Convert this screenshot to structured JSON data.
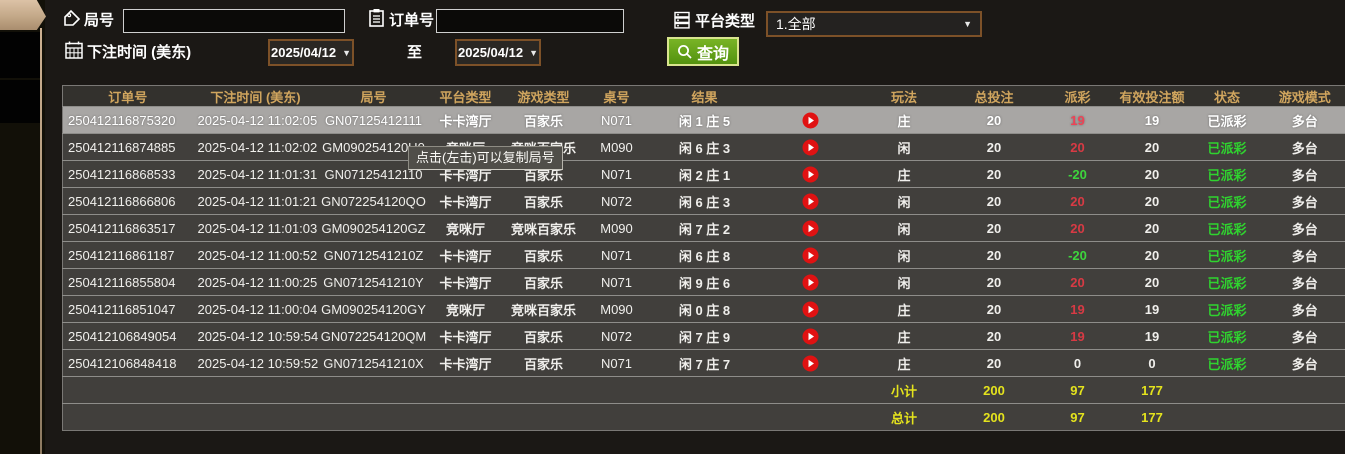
{
  "colors": {
    "accent_gold": "#d0a55e",
    "row_bg": "#413f3c",
    "selected_row_bg": "#a8a6a4",
    "payout_red": "#d83a44",
    "payout_green": "#3dd53d",
    "status_green": "#2fd32f",
    "sum_yellow": "#e4e31d",
    "button_green": "#63a31a",
    "border_brown": "#7d5128"
  },
  "filters": {
    "round": {
      "label": "局号",
      "value": "",
      "icon": "tag-icon"
    },
    "order": {
      "label": "订单号",
      "value": "",
      "icon": "clipboard-icon"
    },
    "platform": {
      "label": "平台类型",
      "value": "1.全部",
      "icon": "server-icon"
    },
    "bet_time": {
      "label": "下注时间 (美东)",
      "icon": "calendar-icon"
    },
    "date_from": "2025/04/12",
    "to_label": "至",
    "date_to": "2025/04/12",
    "search": {
      "label": "查询",
      "icon": "magnifier-icon"
    }
  },
  "tooltip": {
    "text": "点击(左击)可以复制局号"
  },
  "table": {
    "columns": [
      "订单号",
      "下注时间 (美东)",
      "局号",
      "平台类型",
      "游戏类型",
      "桌号",
      "结果",
      "玩法",
      "总投注",
      "派彩",
      "有效投注额",
      "状态",
      "游戏模式"
    ],
    "rows": [
      {
        "order_id": "250412116875320",
        "bet_time": "2025-04-12 11:02:05",
        "round_id": "GN07125412111",
        "platform": "卡卡湾厅",
        "game_type": "百家乐",
        "table_no": "N071",
        "result": "闲 1 庄 5",
        "play": "庄",
        "total_bet": "20",
        "payout": "19",
        "payout_color": "red",
        "valid_bet": "19",
        "status": "已派彩",
        "mode": "多台",
        "selected": true
      },
      {
        "order_id": "250412116874885",
        "bet_time": "2025-04-12 11:02:02",
        "round_id": "GM090254120U0",
        "platform": "竞咪厅",
        "game_type": "竞咪百家乐",
        "table_no": "M090",
        "result": "闲 6 庄 3",
        "play": "闲",
        "total_bet": "20",
        "payout": "20",
        "payout_color": "red",
        "valid_bet": "20",
        "status": "已派彩",
        "mode": "多台",
        "selected": false
      },
      {
        "order_id": "250412116868533",
        "bet_time": "2025-04-12 11:01:31",
        "round_id": "GN07125412110",
        "platform": "卡卡湾厅",
        "game_type": "百家乐",
        "table_no": "N071",
        "result": "闲 2 庄 1",
        "play": "庄",
        "total_bet": "20",
        "payout": "-20",
        "payout_color": "green",
        "valid_bet": "20",
        "status": "已派彩",
        "mode": "多台",
        "selected": false
      },
      {
        "order_id": "250412116866806",
        "bet_time": "2025-04-12 11:01:21",
        "round_id": "GN072254120QO",
        "platform": "卡卡湾厅",
        "game_type": "百家乐",
        "table_no": "N072",
        "result": "闲 6 庄 3",
        "play": "闲",
        "total_bet": "20",
        "payout": "20",
        "payout_color": "red",
        "valid_bet": "20",
        "status": "已派彩",
        "mode": "多台",
        "selected": false
      },
      {
        "order_id": "250412116863517",
        "bet_time": "2025-04-12 11:01:03",
        "round_id": "GM090254120GZ",
        "platform": "竞咪厅",
        "game_type": "竞咪百家乐",
        "table_no": "M090",
        "result": "闲 7 庄 2",
        "play": "闲",
        "total_bet": "20",
        "payout": "20",
        "payout_color": "red",
        "valid_bet": "20",
        "status": "已派彩",
        "mode": "多台",
        "selected": false
      },
      {
        "order_id": "250412116861187",
        "bet_time": "2025-04-12 11:00:52",
        "round_id": "GN0712541210Z",
        "platform": "卡卡湾厅",
        "game_type": "百家乐",
        "table_no": "N071",
        "result": "闲 6 庄 8",
        "play": "闲",
        "total_bet": "20",
        "payout": "-20",
        "payout_color": "green",
        "valid_bet": "20",
        "status": "已派彩",
        "mode": "多台",
        "selected": false
      },
      {
        "order_id": "250412116855804",
        "bet_time": "2025-04-12 11:00:25",
        "round_id": "GN0712541210Y",
        "platform": "卡卡湾厅",
        "game_type": "百家乐",
        "table_no": "N071",
        "result": "闲 9 庄 6",
        "play": "闲",
        "total_bet": "20",
        "payout": "20",
        "payout_color": "red",
        "valid_bet": "20",
        "status": "已派彩",
        "mode": "多台",
        "selected": false
      },
      {
        "order_id": "250412116851047",
        "bet_time": "2025-04-12 11:00:04",
        "round_id": "GM090254120GY",
        "platform": "竞咪厅",
        "game_type": "竞咪百家乐",
        "table_no": "M090",
        "result": "闲 0 庄 8",
        "play": "庄",
        "total_bet": "20",
        "payout": "19",
        "payout_color": "red",
        "valid_bet": "19",
        "status": "已派彩",
        "mode": "多台",
        "selected": false
      },
      {
        "order_id": "250412106849054",
        "bet_time": "2025-04-12 10:59:54",
        "round_id": "GN072254120QM",
        "platform": "卡卡湾厅",
        "game_type": "百家乐",
        "table_no": "N072",
        "result": "闲 7 庄 9",
        "play": "庄",
        "total_bet": "20",
        "payout": "19",
        "payout_color": "red",
        "valid_bet": "19",
        "status": "已派彩",
        "mode": "多台",
        "selected": false
      },
      {
        "order_id": "250412106848418",
        "bet_time": "2025-04-12 10:59:52",
        "round_id": "GN0712541210X",
        "platform": "卡卡湾厅",
        "game_type": "百家乐",
        "table_no": "N071",
        "result": "闲 7 庄 7",
        "play": "庄",
        "total_bet": "20",
        "payout": "0",
        "payout_color": "white",
        "valid_bet": "0",
        "status": "已派彩",
        "mode": "多台",
        "selected": false
      }
    ],
    "subtotal": {
      "label": "小计",
      "total_bet": "200",
      "payout": "97",
      "valid_bet": "177"
    },
    "total": {
      "label": "总计",
      "total_bet": "200",
      "payout": "97",
      "valid_bet": "177"
    }
  }
}
